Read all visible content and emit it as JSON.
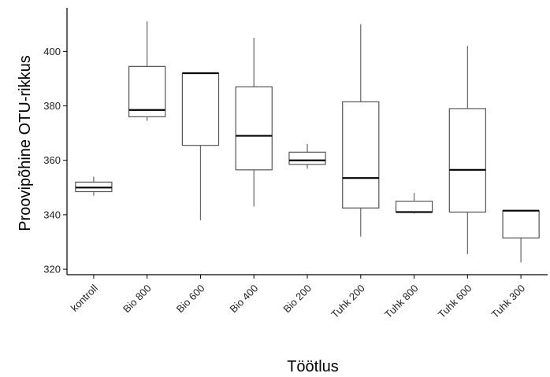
{
  "chart_data": {
    "type": "box",
    "title": "",
    "xlabel": "Töötlus",
    "ylabel": "Proovipõhine OTU-rikkus",
    "ylim": [
      318,
      416
    ],
    "yticks": [
      320,
      340,
      360,
      380,
      400
    ],
    "grid": false,
    "categories": [
      "kontroll",
      "Bio 800",
      "Bio 600",
      "Bio 400",
      "Bio 200",
      "Tuhk 200",
      "Tuhk 800",
      "Tuhk 600",
      "Tuhk 300"
    ],
    "boxes": [
      {
        "min": 347,
        "q1": 348.5,
        "median": 350,
        "q3": 352,
        "max": 354
      },
      {
        "min": 374.5,
        "q1": 376,
        "median": 378.5,
        "q3": 394.5,
        "max": 411
      },
      {
        "min": 338,
        "q1": 365.5,
        "median": 392,
        "q3": 392,
        "max": 392
      },
      {
        "min": 343,
        "q1": 356.5,
        "median": 369,
        "q3": 387,
        "max": 405
      },
      {
        "min": 357,
        "q1": 358.5,
        "median": 360,
        "q3": 363,
        "max": 366
      },
      {
        "min": 332,
        "q1": 342.5,
        "median": 353.5,
        "q3": 381.5,
        "max": 410
      },
      {
        "min": 340.5,
        "q1": 341,
        "median": 341,
        "q3": 345,
        "max": 348
      },
      {
        "min": 325.5,
        "q1": 341,
        "median": 356.5,
        "q3": 379,
        "max": 402
      },
      {
        "min": 322.5,
        "q1": 331.5,
        "median": 341.5,
        "q3": 341.5,
        "max": 341.5
      }
    ]
  }
}
